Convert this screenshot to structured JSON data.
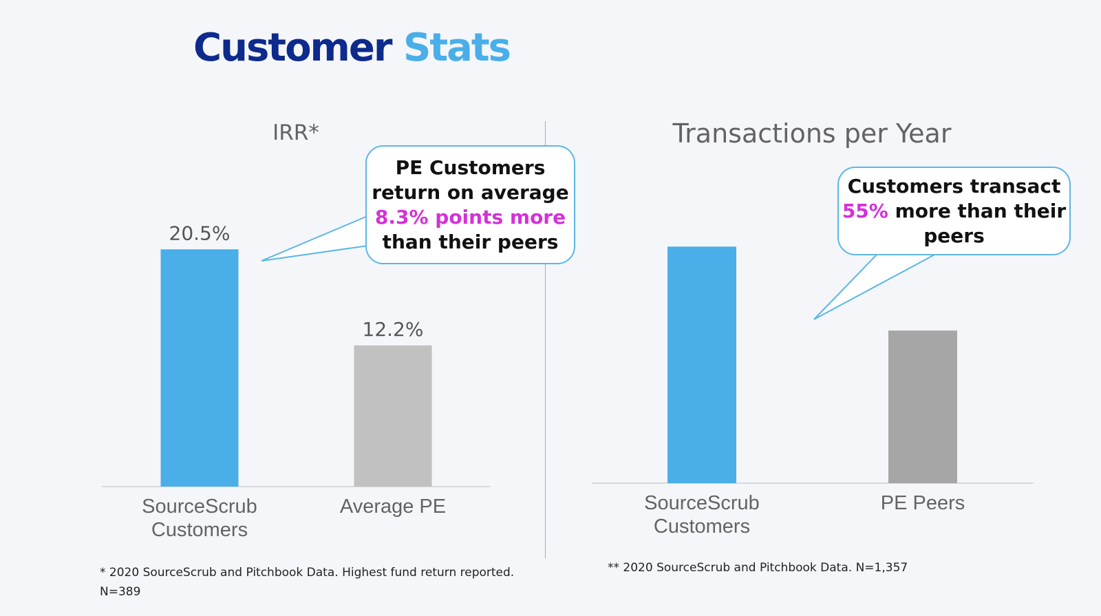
{
  "page": {
    "title_part1": "Customer",
    "title_part2": "Stats",
    "colors": {
      "title_dark": "#0d2a8c",
      "title_light": "#4aaee8",
      "highlight": "#d431d9",
      "callout_border": "#5bb6e6"
    }
  },
  "chart_data": [
    {
      "type": "bar",
      "title": "IRR*",
      "categories": [
        "SourceScrub Customers",
        "Average PE"
      ],
      "category_lines": [
        [
          "SourceScrub",
          "Customers"
        ],
        [
          "Average PE"
        ]
      ],
      "values": [
        20.5,
        12.2
      ],
      "value_labels": [
        "20.5%",
        "12.2%"
      ],
      "colors": [
        "#4aaee8",
        "#c1c1c1"
      ],
      "ylim": [
        0,
        24.5
      ],
      "grid": false,
      "legend": "none"
    },
    {
      "type": "bar",
      "title": "Transactions per Year",
      "categories": [
        "SourceScrub Customers",
        "PE Peers"
      ],
      "category_lines": [
        [
          "SourceScrub",
          "Customers"
        ],
        [
          "PE Peers"
        ]
      ],
      "values": [
        1.55,
        1.0
      ],
      "value_labels": [],
      "colors": [
        "#4aaee8",
        "#a6a6a6"
      ],
      "ylim": [
        0,
        1.84
      ],
      "grid": false,
      "legend": "none"
    }
  ],
  "callouts": {
    "irr": {
      "line1": "PE Customers",
      "line2": "return on average",
      "highlight": "8.3% points more",
      "line4": "than their peers"
    },
    "transactions": {
      "line1": "Customers transact",
      "highlight": "55%",
      "line2_rest": " more than their",
      "line3": "peers"
    }
  },
  "footnotes": {
    "irr": "* 2020 SourceScrub and Pitchbook Data. Highest fund return reported.",
    "irr_n": "N=389",
    "transactions": "** 2020 SourceScrub and Pitchbook Data.  N=1,357"
  }
}
